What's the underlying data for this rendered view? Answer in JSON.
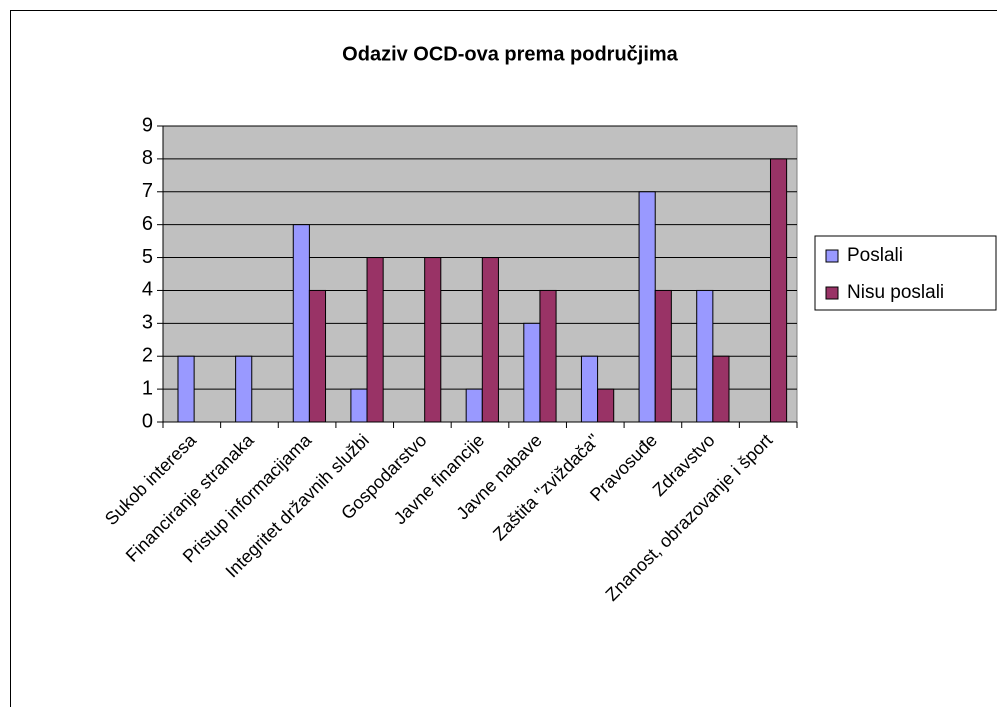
{
  "chart_data": {
    "type": "bar",
    "title": "Odaziv OCD-ova prema područjima",
    "categories": [
      "Sukob interesa",
      "Financiranje stranaka",
      "Pristup informacijama",
      "Integritet državnih službi",
      "Gospodarstvo",
      "Javne financije",
      "Javne nabave",
      "Zaštita \"zviždača\"",
      "Pravosuđe",
      "Zdravstvo",
      "Znanost, obrazovanje i šport"
    ],
    "series": [
      {
        "name": "Poslali",
        "color": "#9999ff",
        "values": [
          2,
          2,
          6,
          1,
          0,
          1,
          3,
          2,
          7,
          4,
          0
        ]
      },
      {
        "name": "Nisu poslali",
        "color": "#993366",
        "values": [
          0,
          0,
          4,
          5,
          5,
          5,
          4,
          1,
          4,
          2,
          8
        ]
      }
    ],
    "ylim": [
      0,
      9
    ],
    "yticks": [
      0,
      1,
      2,
      3,
      4,
      5,
      6,
      7,
      8,
      9
    ],
    "grid": true,
    "plot_background": "#c0c0c0",
    "legend": "right"
  }
}
